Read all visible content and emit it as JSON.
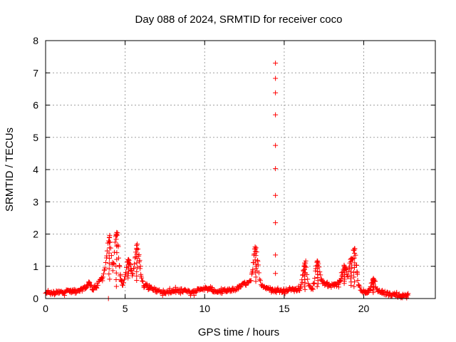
{
  "chart_data": {
    "type": "scatter",
    "title": "Day 088 of 2024, SRMTID for receiver coco",
    "xlabel": "GPS time / hours",
    "ylabel": "SRMTID / TECUs",
    "xlim": [
      0,
      24.5
    ],
    "ylim": [
      0,
      8
    ],
    "xticks": [
      0,
      5,
      10,
      15,
      20
    ],
    "yticks": [
      0,
      1,
      2,
      3,
      4,
      5,
      6,
      7,
      8
    ],
    "grid": true,
    "marker": "+",
    "color": "#ff0000",
    "series": [
      {
        "name": "SRMTID",
        "baseline": [
          [
            0.0,
            0.15
          ],
          [
            0.5,
            0.17
          ],
          [
            1.0,
            0.2
          ],
          [
            1.5,
            0.25
          ],
          [
            2.0,
            0.2
          ],
          [
            2.5,
            0.35
          ],
          [
            2.7,
            0.48
          ],
          [
            3.0,
            0.3
          ],
          [
            3.3,
            0.45
          ],
          [
            3.6,
            0.7
          ],
          [
            3.8,
            0.9
          ],
          [
            4.0,
            0.6
          ],
          [
            4.3,
            0.4
          ],
          [
            4.6,
            0.35
          ],
          [
            4.9,
            0.45
          ],
          [
            5.3,
            0.7
          ],
          [
            5.6,
            0.6
          ],
          [
            6.0,
            0.5
          ],
          [
            6.3,
            0.4
          ],
          [
            6.6,
            0.35
          ],
          [
            7.0,
            0.25
          ],
          [
            7.5,
            0.2
          ],
          [
            8.0,
            0.22
          ],
          [
            8.5,
            0.25
          ],
          [
            9.0,
            0.2
          ],
          [
            9.5,
            0.25
          ],
          [
            10.0,
            0.3
          ],
          [
            10.5,
            0.25
          ],
          [
            11.0,
            0.2
          ],
          [
            11.5,
            0.25
          ],
          [
            12.0,
            0.3
          ],
          [
            12.5,
            0.45
          ],
          [
            13.0,
            0.5
          ],
          [
            13.3,
            0.55
          ],
          [
            13.6,
            0.4
          ],
          [
            14.0,
            0.3
          ],
          [
            14.5,
            0.25
          ],
          [
            15.0,
            0.25
          ],
          [
            15.5,
            0.3
          ],
          [
            16.0,
            0.25
          ],
          [
            16.5,
            0.3
          ],
          [
            17.0,
            0.35
          ],
          [
            17.5,
            0.45
          ],
          [
            18.0,
            0.4
          ],
          [
            18.5,
            0.5
          ],
          [
            19.0,
            0.45
          ],
          [
            19.5,
            0.35
          ],
          [
            20.0,
            0.2
          ],
          [
            20.5,
            0.18
          ],
          [
            21.0,
            0.2
          ],
          [
            21.5,
            0.15
          ],
          [
            22.0,
            0.1
          ],
          [
            22.5,
            0.08
          ],
          [
            22.8,
            0.08
          ]
        ],
        "peaks": [
          {
            "x": 4.0,
            "y": 1.9
          },
          {
            "x": 4.45,
            "y": 2.05
          },
          {
            "x": 5.2,
            "y": 1.2
          },
          {
            "x": 5.75,
            "y": 1.65
          },
          {
            "x": 13.2,
            "y": 1.6
          },
          {
            "x": 16.3,
            "y": 1.1
          },
          {
            "x": 17.1,
            "y": 1.12
          },
          {
            "x": 18.8,
            "y": 1.0
          },
          {
            "x": 19.2,
            "y": 1.25
          },
          {
            "x": 19.4,
            "y": 1.55
          },
          {
            "x": 20.6,
            "y": 0.6
          }
        ],
        "outliers": [
          [
            14.45,
            7.3
          ],
          [
            14.45,
            6.83
          ],
          [
            14.45,
            6.38
          ],
          [
            14.45,
            5.7
          ],
          [
            14.45,
            4.75
          ],
          [
            14.45,
            4.03
          ],
          [
            14.45,
            3.2
          ],
          [
            14.45,
            2.35
          ],
          [
            14.45,
            1.35
          ],
          [
            14.45,
            0.78
          ],
          [
            13.25,
            1.0
          ],
          [
            13.3,
            0.85
          ],
          [
            16.3,
            0.8
          ],
          [
            17.1,
            0.75
          ],
          [
            18.6,
            0.8
          ],
          [
            19.6,
            0.75
          ],
          [
            3.95,
            0.0
          ]
        ]
      }
    ]
  }
}
